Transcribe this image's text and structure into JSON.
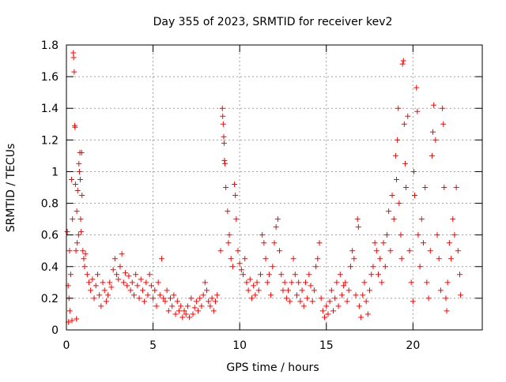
{
  "chart_data": {
    "type": "scatter",
    "title": "Day 355 of 2023, SRMTID for receiver kev2",
    "xlabel": "GPS time / hours",
    "ylabel": "SRMTID / TECUs",
    "xlim": [
      0,
      24
    ],
    "ylim": [
      0,
      1.8
    ],
    "x_ticks": [
      0,
      5,
      10,
      15,
      20
    ],
    "x_tick_labels": [
      "0",
      "5",
      "10",
      "15",
      "20"
    ],
    "y_ticks": [
      0,
      0.2,
      0.4,
      0.6,
      0.8,
      1,
      1.2,
      1.4,
      1.6,
      1.8
    ],
    "y_tick_labels": [
      "0",
      "0.2",
      "0.4",
      "0.6",
      "0.8",
      "1",
      "1.2",
      "1.4",
      "1.6",
      "1.8"
    ],
    "grid": true,
    "marker": "+",
    "color": "#ff0000",
    "series": [
      {
        "name": "SRMTID",
        "points": [
          [
            0.05,
            0.62
          ],
          [
            0.1,
            0.28
          ],
          [
            0.12,
            0.05
          ],
          [
            0.15,
            0.2
          ],
          [
            0.18,
            0.5
          ],
          [
            0.2,
            0.12
          ],
          [
            0.25,
            0.35
          ],
          [
            0.3,
            0.95
          ],
          [
            0.32,
            0.06
          ],
          [
            0.35,
            0.7
          ],
          [
            0.4,
            1.75
          ],
          [
            0.42,
            1.72
          ],
          [
            0.45,
            1.63
          ],
          [
            0.48,
            1.29
          ],
          [
            0.5,
            1.28
          ],
          [
            0.52,
            0.92
          ],
          [
            0.55,
            0.5
          ],
          [
            0.58,
            0.07
          ],
          [
            0.6,
            0.75
          ],
          [
            0.62,
            0.55
          ],
          [
            0.65,
            0.88
          ],
          [
            0.7,
            0.6
          ],
          [
            0.72,
            1.05
          ],
          [
            0.75,
            1.0
          ],
          [
            0.78,
            1.12
          ],
          [
            0.8,
            0.95
          ],
          [
            0.82,
            0.7
          ],
          [
            0.85,
            0.62
          ],
          [
            0.88,
            1.12
          ],
          [
            0.9,
            0.85
          ],
          [
            0.95,
            0.5
          ],
          [
            1.0,
            0.45
          ],
          [
            1.05,
            0.4
          ],
          [
            1.1,
            0.48
          ],
          [
            1.2,
            0.35
          ],
          [
            1.3,
            0.3
          ],
          [
            1.4,
            0.25
          ],
          [
            1.5,
            0.32
          ],
          [
            1.6,
            0.2
          ],
          [
            1.7,
            0.28
          ],
          [
            1.8,
            0.35
          ],
          [
            1.9,
            0.22
          ],
          [
            2.0,
            0.15
          ],
          [
            2.1,
            0.3
          ],
          [
            2.2,
            0.25
          ],
          [
            2.3,
            0.18
          ],
          [
            2.4,
            0.22
          ],
          [
            2.5,
            0.3
          ],
          [
            2.6,
            0.27
          ],
          [
            2.7,
            0.38
          ],
          [
            2.8,
            0.45
          ],
          [
            2.9,
            0.35
          ],
          [
            3.0,
            0.32
          ],
          [
            3.1,
            0.4
          ],
          [
            3.2,
            0.48
          ],
          [
            3.3,
            0.3
          ],
          [
            3.4,
            0.36
          ],
          [
            3.5,
            0.28
          ],
          [
            3.6,
            0.34
          ],
          [
            3.7,
            0.25
          ],
          [
            3.8,
            0.3
          ],
          [
            3.9,
            0.22
          ],
          [
            4.0,
            0.35
          ],
          [
            4.1,
            0.28
          ],
          [
            4.2,
            0.2
          ],
          [
            4.3,
            0.32
          ],
          [
            4.4,
            0.25
          ],
          [
            4.5,
            0.18
          ],
          [
            4.6,
            0.3
          ],
          [
            4.7,
            0.22
          ],
          [
            4.8,
            0.35
          ],
          [
            4.9,
            0.28
          ],
          [
            5.0,
            0.2
          ],
          [
            5.1,
            0.25
          ],
          [
            5.2,
            0.15
          ],
          [
            5.3,
            0.3
          ],
          [
            5.4,
            0.22
          ],
          [
            5.5,
            0.45
          ],
          [
            5.6,
            0.2
          ],
          [
            5.7,
            0.18
          ],
          [
            5.8,
            0.25
          ],
          [
            5.9,
            0.12
          ],
          [
            6.0,
            0.2
          ],
          [
            6.1,
            0.15
          ],
          [
            6.2,
            0.22
          ],
          [
            6.3,
            0.1
          ],
          [
            6.4,
            0.18
          ],
          [
            6.5,
            0.12
          ],
          [
            6.6,
            0.15
          ],
          [
            6.7,
            0.08
          ],
          [
            6.8,
            0.12
          ],
          [
            6.9,
            0.1
          ],
          [
            7.0,
            0.15
          ],
          [
            7.1,
            0.08
          ],
          [
            7.2,
            0.2
          ],
          [
            7.3,
            0.1
          ],
          [
            7.4,
            0.14
          ],
          [
            7.5,
            0.18
          ],
          [
            7.6,
            0.12
          ],
          [
            7.7,
            0.2
          ],
          [
            7.8,
            0.15
          ],
          [
            7.9,
            0.22
          ],
          [
            8.0,
            0.3
          ],
          [
            8.1,
            0.25
          ],
          [
            8.2,
            0.18
          ],
          [
            8.3,
            0.15
          ],
          [
            8.4,
            0.2
          ],
          [
            8.5,
            0.12
          ],
          [
            8.6,
            0.18
          ],
          [
            8.7,
            0.22
          ],
          [
            8.9,
            0.5
          ],
          [
            9.0,
            1.4
          ],
          [
            9.02,
            1.35
          ],
          [
            9.05,
            1.3
          ],
          [
            9.08,
            1.22
          ],
          [
            9.1,
            1.18
          ],
          [
            9.12,
            1.07
          ],
          [
            9.15,
            1.05
          ],
          [
            9.2,
            0.9
          ],
          [
            9.3,
            0.75
          ],
          [
            9.35,
            0.55
          ],
          [
            9.4,
            0.6
          ],
          [
            9.5,
            0.45
          ],
          [
            9.6,
            0.4
          ],
          [
            9.7,
            0.92
          ],
          [
            9.75,
            0.85
          ],
          [
            9.8,
            0.7
          ],
          [
            9.9,
            0.5
          ],
          [
            10.0,
            0.42
          ],
          [
            10.1,
            0.38
          ],
          [
            10.2,
            0.35
          ],
          [
            10.3,
            0.45
          ],
          [
            10.4,
            0.3
          ],
          [
            10.5,
            0.25
          ],
          [
            10.6,
            0.32
          ],
          [
            10.7,
            0.2
          ],
          [
            10.8,
            0.28
          ],
          [
            10.9,
            0.22
          ],
          [
            11.0,
            0.3
          ],
          [
            11.1,
            0.25
          ],
          [
            11.2,
            0.35
          ],
          [
            11.3,
            0.6
          ],
          [
            11.4,
            0.55
          ],
          [
            11.5,
            0.45
          ],
          [
            11.6,
            0.3
          ],
          [
            11.7,
            0.35
          ],
          [
            11.8,
            0.22
          ],
          [
            11.9,
            0.4
          ],
          [
            12.0,
            0.55
          ],
          [
            12.1,
            0.65
          ],
          [
            12.2,
            0.7
          ],
          [
            12.3,
            0.5
          ],
          [
            12.4,
            0.35
          ],
          [
            12.5,
            0.25
          ],
          [
            12.6,
            0.3
          ],
          [
            12.7,
            0.2
          ],
          [
            12.8,
            0.25
          ],
          [
            12.9,
            0.18
          ],
          [
            13.0,
            0.3
          ],
          [
            13.1,
            0.45
          ],
          [
            13.2,
            0.35
          ],
          [
            13.3,
            0.22
          ],
          [
            13.4,
            0.3
          ],
          [
            13.5,
            0.18
          ],
          [
            13.6,
            0.25
          ],
          [
            13.7,
            0.15
          ],
          [
            13.8,
            0.3
          ],
          [
            13.9,
            0.2
          ],
          [
            14.0,
            0.35
          ],
          [
            14.1,
            0.28
          ],
          [
            14.2,
            0.18
          ],
          [
            14.3,
            0.25
          ],
          [
            14.4,
            0.4
          ],
          [
            14.5,
            0.45
          ],
          [
            14.6,
            0.55
          ],
          [
            14.7,
            0.2
          ],
          [
            14.8,
            0.12
          ],
          [
            14.9,
            0.08
          ],
          [
            15.0,
            0.15
          ],
          [
            15.1,
            0.1
          ],
          [
            15.2,
            0.18
          ],
          [
            15.3,
            0.25
          ],
          [
            15.4,
            0.12
          ],
          [
            15.5,
            0.2
          ],
          [
            15.6,
            0.3
          ],
          [
            15.7,
            0.15
          ],
          [
            15.8,
            0.35
          ],
          [
            15.9,
            0.22
          ],
          [
            16.0,
            0.28
          ],
          [
            16.1,
            0.3
          ],
          [
            16.2,
            0.18
          ],
          [
            16.3,
            0.25
          ],
          [
            16.4,
            0.4
          ],
          [
            16.5,
            0.5
          ],
          [
            16.6,
            0.45
          ],
          [
            16.7,
            0.22
          ],
          [
            16.8,
            0.7
          ],
          [
            16.85,
            0.65
          ],
          [
            16.9,
            0.15
          ],
          [
            17.0,
            0.08
          ],
          [
            17.1,
            0.22
          ],
          [
            17.2,
            0.3
          ],
          [
            17.3,
            0.18
          ],
          [
            17.4,
            0.1
          ],
          [
            17.5,
            0.25
          ],
          [
            17.6,
            0.35
          ],
          [
            17.7,
            0.4
          ],
          [
            17.8,
            0.55
          ],
          [
            17.9,
            0.5
          ],
          [
            18.0,
            0.35
          ],
          [
            18.1,
            0.45
          ],
          [
            18.2,
            0.3
          ],
          [
            18.3,
            0.55
          ],
          [
            18.4,
            0.4
          ],
          [
            18.5,
            0.6
          ],
          [
            18.6,
            0.75
          ],
          [
            18.7,
            0.5
          ],
          [
            18.8,
            0.85
          ],
          [
            18.9,
            0.7
          ],
          [
            19.0,
            1.1
          ],
          [
            19.05,
            0.95
          ],
          [
            19.1,
            1.2
          ],
          [
            19.15,
            1.4
          ],
          [
            19.2,
            0.8
          ],
          [
            19.3,
            0.6
          ],
          [
            19.35,
            0.45
          ],
          [
            19.4,
            1.68
          ],
          [
            19.45,
            1.7
          ],
          [
            19.5,
            1.3
          ],
          [
            19.55,
            1.05
          ],
          [
            19.6,
            0.9
          ],
          [
            19.7,
            1.35
          ],
          [
            19.8,
            0.5
          ],
          [
            19.9,
            0.3
          ],
          [
            20.0,
            0.18
          ],
          [
            20.05,
            1.0
          ],
          [
            20.1,
            0.85
          ],
          [
            20.2,
            1.53
          ],
          [
            20.25,
            1.38
          ],
          [
            20.3,
            0.6
          ],
          [
            20.4,
            0.4
          ],
          [
            20.5,
            0.7
          ],
          [
            20.6,
            0.55
          ],
          [
            20.7,
            0.9
          ],
          [
            20.8,
            0.3
          ],
          [
            20.9,
            0.2
          ],
          [
            21.0,
            0.5
          ],
          [
            21.1,
            1.1
          ],
          [
            21.15,
            1.25
          ],
          [
            21.2,
            1.42
          ],
          [
            21.3,
            1.2
          ],
          [
            21.4,
            0.6
          ],
          [
            21.5,
            0.45
          ],
          [
            21.6,
            0.25
          ],
          [
            21.7,
            1.4
          ],
          [
            21.75,
            1.3
          ],
          [
            21.8,
            0.9
          ],
          [
            21.9,
            0.2
          ],
          [
            21.95,
            0.12
          ],
          [
            22.0,
            0.3
          ],
          [
            22.1,
            0.55
          ],
          [
            22.2,
            0.45
          ],
          [
            22.3,
            0.7
          ],
          [
            22.4,
            0.6
          ],
          [
            22.5,
            0.9
          ],
          [
            22.6,
            0.5
          ],
          [
            22.7,
            0.35
          ],
          [
            22.75,
            0.22
          ]
        ]
      }
    ]
  }
}
